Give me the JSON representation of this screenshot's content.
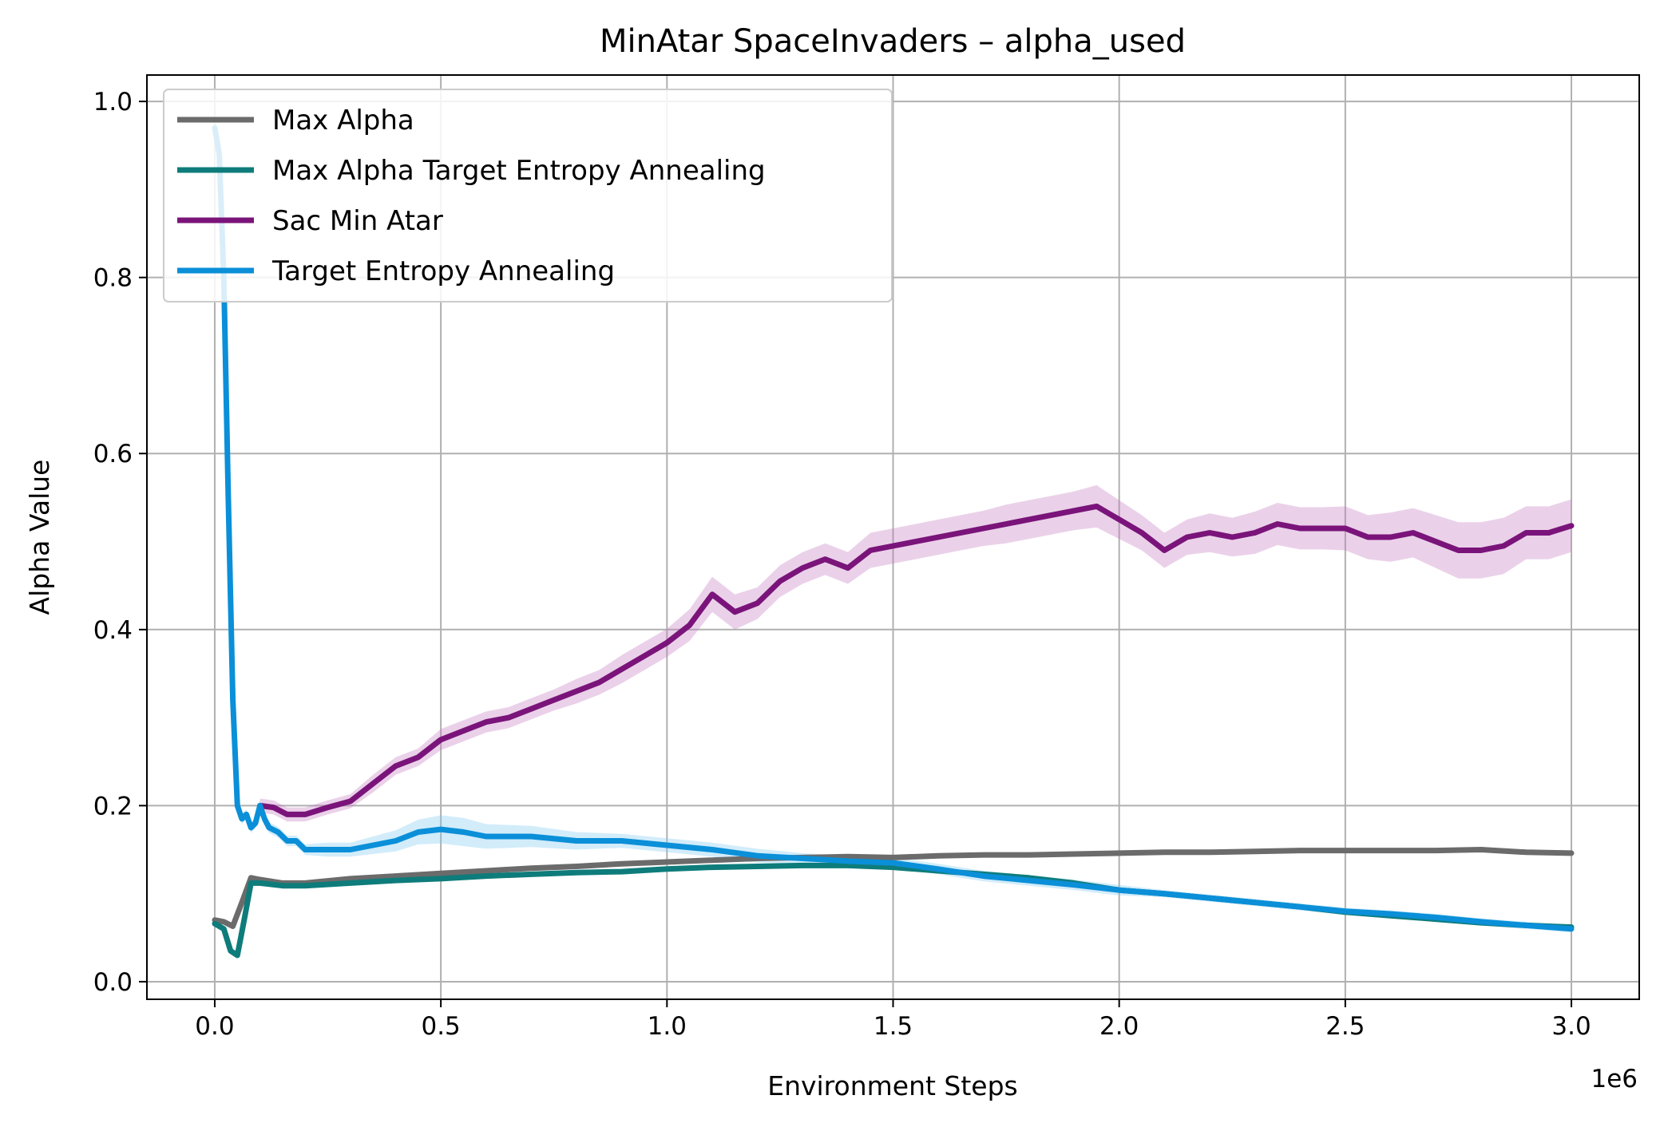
{
  "chart_data": {
    "type": "line",
    "title": "MinAtar SpaceInvaders – alpha_used",
    "xlabel": "Environment Steps",
    "ylabel": "Alpha Value",
    "x_offset_label": "1e6",
    "xlim": [
      -0.15,
      3.15
    ],
    "ylim": [
      -0.02,
      1.03
    ],
    "x_ticks": [
      0.0,
      0.5,
      1.0,
      1.5,
      2.0,
      2.5,
      3.0
    ],
    "x_tick_labels": [
      "0.0",
      "0.5",
      "1.0",
      "1.5",
      "2.0",
      "2.5",
      "3.0"
    ],
    "y_ticks": [
      0.0,
      0.2,
      0.4,
      0.6,
      0.8,
      1.0
    ],
    "y_tick_labels": [
      "0.0",
      "0.2",
      "0.4",
      "0.6",
      "0.8",
      "1.0"
    ],
    "grid": true,
    "legend_position": "top-left",
    "series": [
      {
        "name": "Max Alpha",
        "color": "#6b6b6b",
        "x": [
          0.0,
          0.02,
          0.04,
          0.06,
          0.08,
          0.1,
          0.15,
          0.2,
          0.3,
          0.4,
          0.5,
          0.6,
          0.7,
          0.8,
          0.9,
          1.0,
          1.1,
          1.2,
          1.3,
          1.4,
          1.5,
          1.6,
          1.7,
          1.8,
          1.9,
          2.0,
          2.1,
          2.2,
          2.3,
          2.4,
          2.5,
          2.6,
          2.7,
          2.8,
          2.9,
          3.0
        ],
        "y": [
          0.07,
          0.068,
          0.063,
          0.09,
          0.118,
          0.116,
          0.112,
          0.112,
          0.117,
          0.12,
          0.123,
          0.126,
          0.129,
          0.131,
          0.134,
          0.136,
          0.138,
          0.14,
          0.141,
          0.142,
          0.141,
          0.143,
          0.144,
          0.144,
          0.145,
          0.146,
          0.147,
          0.147,
          0.148,
          0.149,
          0.149,
          0.149,
          0.149,
          0.15,
          0.147,
          0.146
        ]
      },
      {
        "name": "Max Alpha Target Entropy Annealing",
        "color": "#0e7c7b",
        "x": [
          0.0,
          0.02,
          0.035,
          0.05,
          0.065,
          0.08,
          0.1,
          0.15,
          0.2,
          0.3,
          0.4,
          0.5,
          0.6,
          0.7,
          0.8,
          0.9,
          1.0,
          1.1,
          1.2,
          1.3,
          1.4,
          1.5,
          1.6,
          1.7,
          1.8,
          1.9,
          2.0,
          2.1,
          2.2,
          2.3,
          2.4,
          2.5,
          2.6,
          2.7,
          2.8,
          2.9,
          3.0
        ],
        "y": [
          0.066,
          0.06,
          0.035,
          0.03,
          0.07,
          0.112,
          0.112,
          0.109,
          0.109,
          0.112,
          0.115,
          0.117,
          0.12,
          0.122,
          0.124,
          0.125,
          0.128,
          0.13,
          0.131,
          0.132,
          0.132,
          0.13,
          0.126,
          0.122,
          0.118,
          0.112,
          0.104,
          0.1,
          0.095,
          0.09,
          0.085,
          0.079,
          0.075,
          0.071,
          0.067,
          0.064,
          0.062
        ]
      },
      {
        "name": "Sac Min Atar",
        "color": "#7a147a",
        "band_color": "#c47cbf",
        "x": [
          0.1,
          0.13,
          0.16,
          0.2,
          0.25,
          0.3,
          0.35,
          0.4,
          0.45,
          0.5,
          0.55,
          0.6,
          0.65,
          0.7,
          0.75,
          0.8,
          0.85,
          0.9,
          0.95,
          1.0,
          1.05,
          1.1,
          1.15,
          1.2,
          1.25,
          1.3,
          1.35,
          1.4,
          1.45,
          1.5,
          1.55,
          1.6,
          1.65,
          1.7,
          1.75,
          1.8,
          1.85,
          1.9,
          1.95,
          2.0,
          2.05,
          2.1,
          2.15,
          2.2,
          2.25,
          2.3,
          2.35,
          2.4,
          2.45,
          2.5,
          2.55,
          2.6,
          2.65,
          2.7,
          2.75,
          2.8,
          2.85,
          2.9,
          2.95,
          3.0
        ],
        "y": [
          0.2,
          0.198,
          0.19,
          0.19,
          0.198,
          0.205,
          0.225,
          0.245,
          0.255,
          0.275,
          0.285,
          0.295,
          0.3,
          0.31,
          0.32,
          0.33,
          0.34,
          0.355,
          0.37,
          0.385,
          0.405,
          0.44,
          0.42,
          0.43,
          0.455,
          0.47,
          0.48,
          0.47,
          0.49,
          0.495,
          0.5,
          0.505,
          0.51,
          0.515,
          0.52,
          0.525,
          0.53,
          0.535,
          0.54,
          0.525,
          0.51,
          0.49,
          0.505,
          0.51,
          0.505,
          0.51,
          0.52,
          0.515,
          0.515,
          0.515,
          0.505,
          0.505,
          0.51,
          0.5,
          0.49,
          0.49,
          0.495,
          0.51,
          0.51,
          0.518
        ],
        "band": [
          0.008,
          0.008,
          0.008,
          0.008,
          0.008,
          0.008,
          0.01,
          0.01,
          0.01,
          0.012,
          0.012,
          0.012,
          0.012,
          0.012,
          0.012,
          0.014,
          0.014,
          0.016,
          0.016,
          0.016,
          0.018,
          0.02,
          0.02,
          0.018,
          0.018,
          0.018,
          0.018,
          0.018,
          0.02,
          0.02,
          0.02,
          0.02,
          0.02,
          0.02,
          0.022,
          0.022,
          0.022,
          0.022,
          0.024,
          0.022,
          0.02,
          0.02,
          0.02,
          0.022,
          0.022,
          0.024,
          0.024,
          0.024,
          0.024,
          0.025,
          0.025,
          0.028,
          0.028,
          0.03,
          0.032,
          0.032,
          0.032,
          0.03,
          0.03,
          0.03
        ]
      },
      {
        "name": "Target Entropy Annealing",
        "color": "#0a8fd8",
        "band_color": "#7fc8f0",
        "x": [
          0.0,
          0.01,
          0.02,
          0.03,
          0.04,
          0.05,
          0.06,
          0.07,
          0.08,
          0.09,
          0.1,
          0.11,
          0.12,
          0.14,
          0.16,
          0.18,
          0.2,
          0.25,
          0.3,
          0.35,
          0.4,
          0.45,
          0.5,
          0.55,
          0.6,
          0.7,
          0.8,
          0.9,
          1.0,
          1.1,
          1.2,
          1.3,
          1.4,
          1.5,
          1.6,
          1.7,
          1.8,
          1.9,
          2.0,
          2.1,
          2.2,
          2.3,
          2.4,
          2.5,
          2.6,
          2.7,
          2.8,
          2.9,
          3.0
        ],
        "y": [
          0.97,
          0.94,
          0.8,
          0.55,
          0.32,
          0.2,
          0.185,
          0.19,
          0.175,
          0.18,
          0.2,
          0.185,
          0.175,
          0.17,
          0.16,
          0.16,
          0.15,
          0.15,
          0.15,
          0.155,
          0.16,
          0.17,
          0.173,
          0.17,
          0.165,
          0.165,
          0.16,
          0.16,
          0.155,
          0.15,
          0.143,
          0.14,
          0.137,
          0.135,
          0.128,
          0.12,
          0.115,
          0.11,
          0.104,
          0.1,
          0.095,
          0.09,
          0.085,
          0.08,
          0.077,
          0.073,
          0.068,
          0.064,
          0.06
        ],
        "band": [
          0.01,
          0.01,
          0.01,
          0.01,
          0.01,
          0.006,
          0.006,
          0.006,
          0.006,
          0.006,
          0.006,
          0.006,
          0.006,
          0.006,
          0.006,
          0.006,
          0.006,
          0.008,
          0.008,
          0.01,
          0.012,
          0.014,
          0.016,
          0.016,
          0.014,
          0.012,
          0.01,
          0.008,
          0.008,
          0.008,
          0.008,
          0.006,
          0.006,
          0.006,
          0.006,
          0.006,
          0.006,
          0.006,
          0.006,
          0.004,
          0.004,
          0.004,
          0.004,
          0.004,
          0.004,
          0.004,
          0.004,
          0.004,
          0.004
        ]
      }
    ]
  }
}
